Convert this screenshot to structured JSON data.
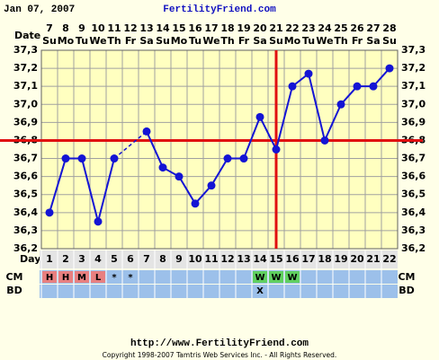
{
  "chart_data": {
    "type": "line",
    "date_label": "Jan 07, 2007",
    "title": "FertilityFriend.com",
    "date_axis_label": "Date",
    "dates": [
      7,
      8,
      9,
      10,
      11,
      12,
      13,
      14,
      15,
      16,
      17,
      18,
      19,
      20,
      21,
      22,
      23,
      24,
      25,
      26,
      27,
      28
    ],
    "weekdays": [
      "Su",
      "Mo",
      "Tu",
      "We",
      "Th",
      "Fr",
      "Sa",
      "Su",
      "Mo",
      "Tu",
      "We",
      "Th",
      "Fr",
      "Sa",
      "Su",
      "Mo",
      "Tu",
      "We",
      "Th",
      "Fr",
      "Sa",
      "Su"
    ],
    "day_label": "Day",
    "categories": [
      1,
      2,
      3,
      4,
      5,
      6,
      7,
      8,
      9,
      10,
      11,
      12,
      13,
      14,
      15,
      16,
      17,
      18,
      19,
      20,
      21,
      22
    ],
    "values": [
      36.4,
      36.7,
      36.7,
      36.35,
      36.7,
      null,
      36.85,
      36.65,
      36.6,
      36.45,
      36.55,
      36.7,
      36.7,
      36.93,
      36.75,
      37.1,
      37.17,
      36.8,
      37.0,
      37.1,
      37.1,
      37.2
    ],
    "color": "#1414d4",
    "ylim": [
      36.2,
      37.3
    ],
    "yticks": [
      {
        "value": 36.2,
        "label": "36,2"
      },
      {
        "value": 36.3,
        "label": "36,3"
      },
      {
        "value": 36.4,
        "label": "36,4"
      },
      {
        "value": 36.5,
        "label": "36,5"
      },
      {
        "value": 36.6,
        "label": "36,6"
      },
      {
        "value": 36.7,
        "label": "36,7"
      },
      {
        "value": 36.8,
        "label": "36,8"
      },
      {
        "value": 36.9,
        "label": "36,9"
      },
      {
        "value": 37.0,
        "label": "37,0"
      },
      {
        "value": 37.1,
        "label": "37,1"
      },
      {
        "value": 37.2,
        "label": "37,2"
      },
      {
        "value": 37.3,
        "label": "37,3"
      }
    ],
    "grid": true,
    "coverline": 36.8,
    "ovulation_day": 15,
    "marker_color": "#e01010",
    "cm_label": "CM",
    "cm": [
      "H",
      "H",
      "M",
      "L",
      "*",
      "*",
      null,
      null,
      null,
      null,
      null,
      null,
      null,
      "W",
      "W",
      "W",
      null,
      null,
      null,
      null,
      null,
      null
    ],
    "cm_colors": [
      "#e88080",
      "#e88080",
      "#e88080",
      "#e88080",
      null,
      null,
      null,
      null,
      null,
      null,
      null,
      null,
      null,
      "#60d060",
      "#60d060",
      "#60d060",
      null,
      null,
      null,
      null,
      null,
      null
    ],
    "bd_label": "BD",
    "bd": [
      null,
      null,
      null,
      null,
      null,
      null,
      null,
      null,
      null,
      null,
      null,
      null,
      null,
      "X",
      null,
      null,
      null,
      null,
      null,
      null,
      null,
      null
    ],
    "footer_url": "http://www.FertilityFriend.com",
    "copyright": "Copyright 1998-2007 Tamtris Web Services Inc. - All Rights Reserved."
  }
}
